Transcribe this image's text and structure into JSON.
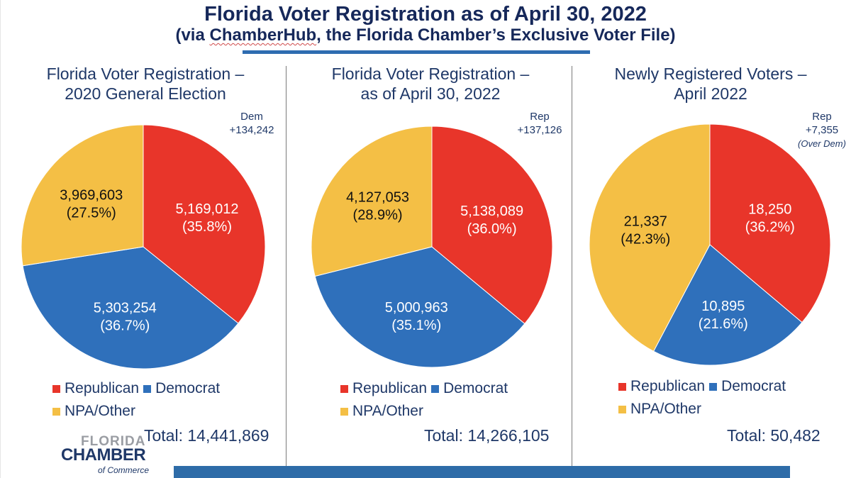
{
  "header": {
    "title": "Florida Voter Registration as of April 30, 2022",
    "subtitle_prefix": "(via ",
    "subtitle_link": "ChamberHub",
    "subtitle_suffix": ", the Florida Chamber’s Exclusive Voter File)"
  },
  "colors": {
    "republican": "#e8352a",
    "democrat": "#2f70bb",
    "npa_other": "#f4bf45",
    "title_text": "#16285a",
    "body_text": "#1f3868",
    "accent_bar": "#2e6ca8"
  },
  "legend": {
    "republican": "Republican",
    "democrat": "Democrat",
    "npa_other": "NPA/Other"
  },
  "logo": {
    "line1": "FLORIDA",
    "line2": "CHAMBER",
    "line3": "of Commerce"
  },
  "chart_data": [
    {
      "type": "pie",
      "title": "Florida Voter Registration – 2020 General Election",
      "title_lines": [
        "Florida Voter Registration –",
        "2020 General Election"
      ],
      "categories": [
        "Republican",
        "Democrat",
        "NPA/Other"
      ],
      "values": [
        5169012,
        5303254,
        3969603
      ],
      "value_labels": [
        "5,169,012",
        "5,303,254",
        "3,969,603"
      ],
      "percent_labels": [
        "(35.8%)",
        "(36.7%)",
        "(27.5%)"
      ],
      "percents": [
        35.8,
        36.7,
        27.5
      ],
      "annotation_lines": [
        "Dem",
        "+134,242"
      ],
      "total_label": "Total: 14,441,869",
      "total": 14441869,
      "legend_position": "bottom",
      "start_angle": "12 o'clock, clockwise"
    },
    {
      "type": "pie",
      "title": "Florida Voter Registration – as of April 30, 2022",
      "title_lines": [
        "Florida Voter Registration –",
        "as of April 30, 2022"
      ],
      "categories": [
        "Republican",
        "Democrat",
        "NPA/Other"
      ],
      "values": [
        5138089,
        5000963,
        4127053
      ],
      "value_labels": [
        "5,138,089",
        "5,000,963",
        "4,127,053"
      ],
      "percent_labels": [
        "(36.0%)",
        "(35.1%)",
        "(28.9%)"
      ],
      "percents": [
        36.0,
        35.1,
        28.9
      ],
      "annotation_lines": [
        "Rep",
        "+137,126"
      ],
      "total_label": "Total: 14,266,105",
      "total": 14266105,
      "legend_position": "bottom",
      "start_angle": "12 o'clock, clockwise"
    },
    {
      "type": "pie",
      "title": "Newly Registered Voters – April 2022",
      "title_lines": [
        "Newly Registered Voters –",
        "April 2022"
      ],
      "categories": [
        "Republican",
        "Democrat",
        "NPA/Other"
      ],
      "values": [
        18250,
        10895,
        21337
      ],
      "value_labels": [
        "18,250",
        "10,895",
        "21,337"
      ],
      "percent_labels": [
        "(36.2%)",
        "(21.6%)",
        "(42.3%)"
      ],
      "percents": [
        36.2,
        21.6,
        42.3
      ],
      "annotation_lines": [
        "Rep",
        "+7,355",
        "(Over Dem)"
      ],
      "total_label": "Total: 50,482",
      "total": 50482,
      "legend_position": "bottom",
      "start_angle": "12 o'clock, clockwise"
    }
  ]
}
